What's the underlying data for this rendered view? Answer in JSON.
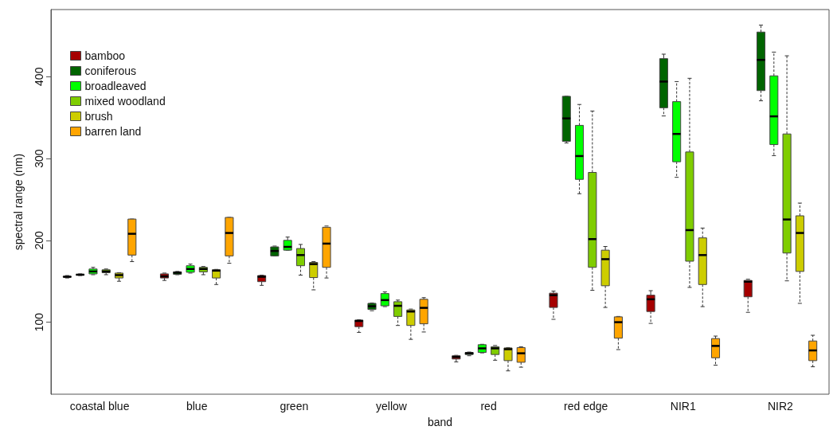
{
  "chart_data": {
    "type": "box",
    "xlabel": "band",
    "ylabel": "spectral range (nm)",
    "categories": [
      "coastal blue",
      "blue",
      "green",
      "yellow",
      "red",
      "red edge",
      "NIR1",
      "NIR2"
    ],
    "ylim": [
      12,
      482
    ],
    "yticks": [
      100,
      200,
      300,
      400
    ],
    "grid": false,
    "legend": "top left",
    "series": [
      {
        "name": "bamboo",
        "color": "#a50000",
        "boxes": [
          {
            "low": 154,
            "q1": 155,
            "median": 155.5,
            "q3": 156,
            "high": 157
          },
          {
            "low": 151,
            "q1": 154,
            "median": 156,
            "q3": 159,
            "high": 160
          },
          {
            "low": 145,
            "q1": 149.5,
            "median": 155.5,
            "q3": 157,
            "high": 157.5
          },
          {
            "low": 87.5,
            "q1": 94.5,
            "median": 101.5,
            "q3": 102.5,
            "high": 103
          },
          {
            "low": 51.5,
            "q1": 55,
            "median": 57.5,
            "q3": 59,
            "high": 59.5
          },
          {
            "low": 103.5,
            "q1": 118,
            "median": 133,
            "q3": 135.5,
            "high": 138
          },
          {
            "low": 98.5,
            "q1": 113,
            "median": 128,
            "q3": 133,
            "high": 138.5
          },
          {
            "low": 112,
            "q1": 131,
            "median": 149.5,
            "q3": 151,
            "high": 152.5
          }
        ]
      },
      {
        "name": "coniferous",
        "color": "#006400",
        "boxes": [
          {
            "low": 157,
            "q1": 157.5,
            "median": 158,
            "q3": 158.5,
            "high": 159
          },
          {
            "low": 158,
            "q1": 158.5,
            "median": 160.5,
            "q3": 161.5,
            "high": 162
          },
          {
            "low": 181,
            "q1": 181,
            "median": 187,
            "q3": 192,
            "high": 193
          },
          {
            "low": 114,
            "q1": 115.5,
            "median": 119.5,
            "q3": 123,
            "high": 123.5
          },
          {
            "low": 59,
            "q1": 60.5,
            "median": 62,
            "q3": 63,
            "high": 63.5
          },
          {
            "low": 319,
            "q1": 321,
            "median": 349,
            "q3": 376,
            "high": 376
          },
          {
            "low": 352,
            "q1": 362,
            "median": 394,
            "q3": 422,
            "high": 427.5
          },
          {
            "low": 370.5,
            "q1": 383,
            "median": 420.5,
            "q3": 454.5,
            "high": 463
          }
        ]
      },
      {
        "name": "broadleaved",
        "color": "#00ff00",
        "boxes": [
          {
            "low": 158,
            "q1": 159,
            "median": 162,
            "q3": 165,
            "high": 167
          },
          {
            "low": 160,
            "q1": 161,
            "median": 165,
            "q3": 169,
            "high": 171
          },
          {
            "low": 188,
            "q1": 188,
            "median": 192,
            "q3": 200,
            "high": 204
          },
          {
            "low": 119,
            "q1": 120,
            "median": 127,
            "q3": 135,
            "high": 137
          },
          {
            "low": 62.5,
            "q1": 63,
            "median": 68,
            "q3": 72.5,
            "high": 73
          },
          {
            "low": 257,
            "q1": 274.5,
            "median": 303,
            "q3": 340.5,
            "high": 366
          },
          {
            "low": 277,
            "q1": 296,
            "median": 330,
            "q3": 369.5,
            "high": 394
          },
          {
            "low": 303.5,
            "q1": 317,
            "median": 351.5,
            "q3": 401,
            "high": 430
          }
        ]
      },
      {
        "name": "mixed woodland",
        "color": "#7fcd00",
        "boxes": [
          {
            "low": 158,
            "q1": 160.5,
            "median": 162,
            "q3": 164,
            "high": 165
          },
          {
            "low": 158,
            "q1": 161.5,
            "median": 165,
            "q3": 167,
            "high": 168
          },
          {
            "low": 157.5,
            "q1": 169,
            "median": 182,
            "q3": 190,
            "high": 195
          },
          {
            "low": 96,
            "q1": 107,
            "median": 120,
            "q3": 125,
            "high": 127
          },
          {
            "low": 53.5,
            "q1": 60.5,
            "median": 68,
            "q3": 70,
            "high": 71.5
          },
          {
            "low": 139,
            "q1": 167,
            "median": 201.5,
            "q3": 283,
            "high": 358
          },
          {
            "low": 142.5,
            "q1": 174.5,
            "median": 212.5,
            "q3": 308,
            "high": 398
          },
          {
            "low": 150.5,
            "q1": 184.5,
            "median": 225.5,
            "q3": 330,
            "high": 425.5
          }
        ]
      },
      {
        "name": "brush",
        "color": "#cdcd00",
        "boxes": [
          {
            "low": 150,
            "q1": 154,
            "median": 157.5,
            "q3": 160,
            "high": 160.5
          },
          {
            "low": 146,
            "q1": 154,
            "median": 163,
            "q3": 164,
            "high": 164.5
          },
          {
            "low": 139.5,
            "q1": 154.5,
            "median": 171,
            "q3": 173,
            "high": 174
          },
          {
            "low": 79,
            "q1": 96,
            "median": 113,
            "q3": 115,
            "high": 116
          },
          {
            "low": 40.5,
            "q1": 53,
            "median": 67,
            "q3": 68.5,
            "high": 69
          },
          {
            "low": 118,
            "q1": 144.5,
            "median": 177,
            "q3": 188,
            "high": 192.5
          },
          {
            "low": 119,
            "q1": 146,
            "median": 182,
            "q3": 203,
            "high": 215
          },
          {
            "low": 123,
            "q1": 162,
            "median": 209,
            "q3": 230,
            "high": 245.5
          }
        ]
      },
      {
        "name": "barren land",
        "color": "#ffa500",
        "boxes": [
          {
            "low": 174,
            "q1": 182,
            "median": 208,
            "q3": 226,
            "high": 226
          },
          {
            "low": 172,
            "q1": 181,
            "median": 209,
            "q3": 228,
            "high": 228
          },
          {
            "low": 154,
            "q1": 167,
            "median": 196,
            "q3": 216,
            "high": 217.5
          },
          {
            "low": 88,
            "q1": 98,
            "median": 117.5,
            "q3": 128,
            "high": 130
          },
          {
            "low": 45,
            "q1": 51,
            "median": 62,
            "q3": 69,
            "high": 70
          },
          {
            "low": 66.5,
            "q1": 80.5,
            "median": 100,
            "q3": 106.5,
            "high": 107
          },
          {
            "low": 47.5,
            "q1": 56.5,
            "median": 71,
            "q3": 80,
            "high": 83
          },
          {
            "low": 45.5,
            "q1": 53,
            "median": 65.5,
            "q3": 77,
            "high": 84
          }
        ]
      }
    ]
  }
}
